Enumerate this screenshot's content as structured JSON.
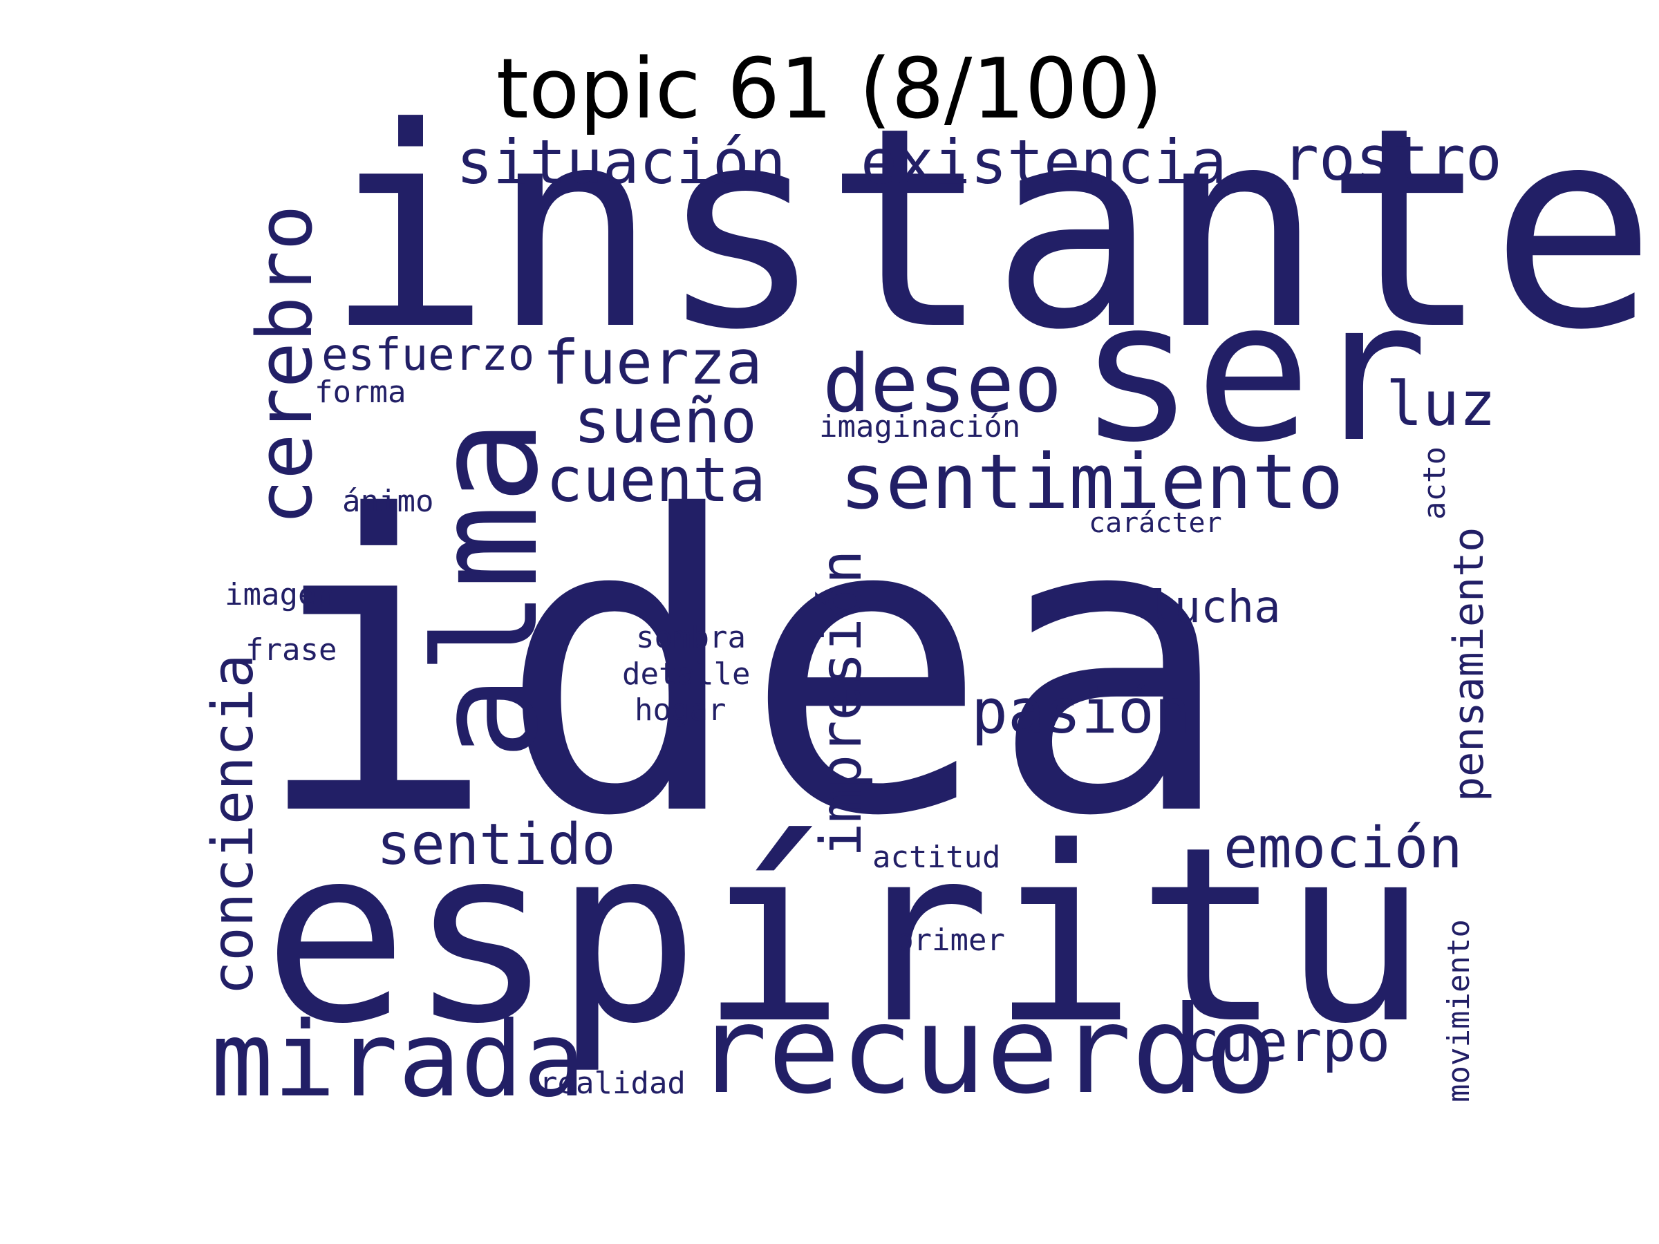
{
  "title": "topic 61 (8/100)",
  "word_color": "#221f66",
  "background_color": "#ffffff",
  "words": [
    "idea",
    "instante",
    "espíritu",
    "alma",
    "ser",
    "recuerdo",
    "mirada",
    "cerebro",
    "deseo",
    "sentimiento",
    "existencia",
    "situación",
    "rostro",
    "fuerza",
    "sueño",
    "cuenta",
    "esfuerzo",
    "luz",
    "pasión",
    "impresión",
    "emoción",
    "cuerpo",
    "conciencia",
    "sentido",
    "lucha",
    "pensamiento",
    "forma",
    "imaginación",
    "ánimo",
    "carácter",
    "acto",
    "imagen",
    "frase",
    "sombra",
    "detalle",
    "hogar",
    "actitud",
    "primer",
    "realidad",
    "movimiento"
  ]
}
